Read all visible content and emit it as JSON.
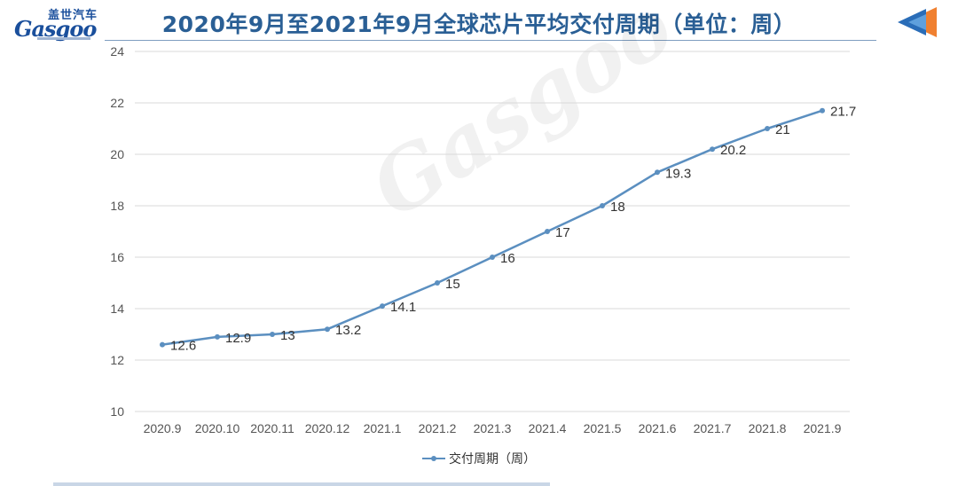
{
  "logo": {
    "cn": "盖世汽车",
    "en": "Gasgoo"
  },
  "chart_data": {
    "type": "line",
    "title": "2020年9月至2021年9月全球芯片平均交付周期（单位：周）",
    "categories": [
      "2020.9",
      "2020.10",
      "2020.11",
      "2020.12",
      "2021.1",
      "2021.2",
      "2021.3",
      "2021.4",
      "2021.5",
      "2021.6",
      "2021.7",
      "2021.8",
      "2021.9"
    ],
    "series": [
      {
        "name": "交付周期（周）",
        "values": [
          12.6,
          12.9,
          13,
          13.2,
          14.1,
          15,
          16,
          17,
          18,
          19.3,
          20.2,
          21,
          21.7
        ],
        "color": "#5b8fc0"
      }
    ],
    "data_labels": [
      "12.6",
      "12.9",
      "13",
      "13.2",
      "14.1",
      "15",
      "16",
      "17",
      "18",
      "19.3",
      "20.2",
      "21",
      "21.7"
    ],
    "yticks": [
      "10",
      "12",
      "14",
      "16",
      "18",
      "20",
      "22",
      "24"
    ],
    "ylim": [
      10,
      24
    ],
    "xlabel": "",
    "ylabel": "",
    "grid": true,
    "legend_position": "bottom"
  }
}
